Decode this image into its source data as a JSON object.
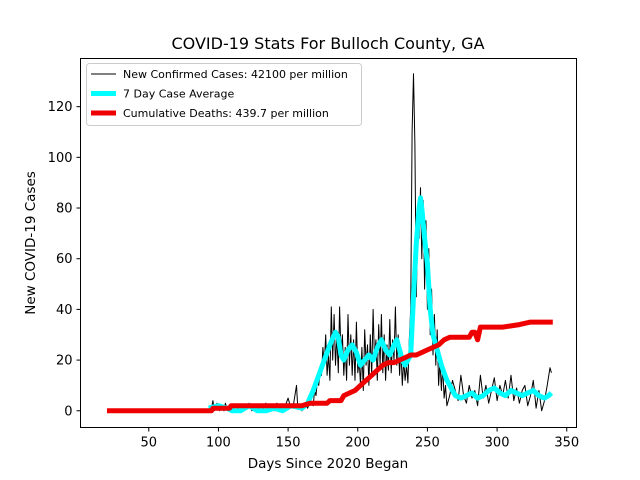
{
  "chart_data": {
    "type": "line",
    "title": "COVID-19 Stats For Bulloch County, GA",
    "xlabel": "Days Since 2020 Began",
    "ylabel": "New COVID-19 Cases",
    "xlim": [
      1,
      357
    ],
    "ylim": [
      -6.6,
      139
    ],
    "x_ticks": [
      50,
      100,
      150,
      200,
      250,
      300,
      350
    ],
    "y_ticks": [
      0,
      20,
      40,
      60,
      80,
      100,
      120
    ],
    "grid": false,
    "legend_position": "top-left",
    "series": [
      {
        "name": "New Confirmed Cases: 42100 per million",
        "color": "#000000",
        "line_width": 1,
        "points": [
          [
            93,
            0
          ],
          [
            94,
            2
          ],
          [
            95,
            1
          ],
          [
            96,
            4
          ],
          [
            97,
            0
          ],
          [
            98,
            2
          ],
          [
            99,
            3
          ],
          [
            100,
            1
          ],
          [
            101,
            0
          ],
          [
            102,
            2
          ],
          [
            103,
            1
          ],
          [
            104,
            0
          ],
          [
            105,
            3
          ],
          [
            106,
            1
          ],
          [
            107,
            0
          ],
          [
            108,
            2
          ],
          [
            109,
            1
          ],
          [
            110,
            0
          ],
          [
            112,
            2
          ],
          [
            114,
            1
          ],
          [
            116,
            0
          ],
          [
            118,
            2
          ],
          [
            120,
            1
          ],
          [
            122,
            3
          ],
          [
            124,
            0
          ],
          [
            126,
            1
          ],
          [
            128,
            2
          ],
          [
            130,
            0
          ],
          [
            132,
            1
          ],
          [
            134,
            3
          ],
          [
            136,
            0
          ],
          [
            138,
            1
          ],
          [
            140,
            0
          ],
          [
            142,
            3
          ],
          [
            144,
            1
          ],
          [
            146,
            0
          ],
          [
            148,
            2
          ],
          [
            150,
            5
          ],
          [
            152,
            1
          ],
          [
            154,
            3
          ],
          [
            156,
            10
          ],
          [
            157,
            1
          ],
          [
            158,
            2
          ],
          [
            160,
            0
          ],
          [
            162,
            3
          ],
          [
            164,
            1
          ],
          [
            166,
            4
          ],
          [
            168,
            2
          ],
          [
            169,
            8
          ],
          [
            170,
            6
          ],
          [
            171,
            12
          ],
          [
            172,
            10
          ],
          [
            173,
            15
          ],
          [
            174,
            14
          ],
          [
            175,
            25
          ],
          [
            176,
            18
          ],
          [
            177,
            30
          ],
          [
            178,
            14
          ],
          [
            179,
            22
          ],
          [
            180,
            12
          ],
          [
            181,
            41
          ],
          [
            182,
            20
          ],
          [
            183,
            38
          ],
          [
            184,
            18
          ],
          [
            185,
            30
          ],
          [
            186,
            15
          ],
          [
            187,
            41
          ],
          [
            188,
            22
          ],
          [
            189,
            30
          ],
          [
            190,
            14
          ],
          [
            191,
            25
          ],
          [
            192,
            12
          ],
          [
            193,
            38
          ],
          [
            194,
            18
          ],
          [
            195,
            30
          ],
          [
            196,
            14
          ],
          [
            197,
            28
          ],
          [
            198,
            12
          ],
          [
            199,
            35
          ],
          [
            200,
            15
          ],
          [
            201,
            20
          ],
          [
            202,
            10
          ],
          [
            203,
            25
          ],
          [
            204,
            8
          ],
          [
            205,
            32
          ],
          [
            206,
            18
          ],
          [
            207,
            26
          ],
          [
            208,
            10
          ],
          [
            209,
            30
          ],
          [
            210,
            14
          ],
          [
            211,
            40
          ],
          [
            212,
            20
          ],
          [
            213,
            28
          ],
          [
            214,
            12
          ],
          [
            215,
            34
          ],
          [
            216,
            18
          ],
          [
            217,
            38
          ],
          [
            218,
            15
          ],
          [
            219,
            30
          ],
          [
            220,
            12
          ],
          [
            221,
            26
          ],
          [
            222,
            16
          ],
          [
            223,
            36
          ],
          [
            224,
            15
          ],
          [
            225,
            28
          ],
          [
            226,
            20
          ],
          [
            227,
            41
          ],
          [
            228,
            18
          ],
          [
            229,
            30
          ],
          [
            230,
            14
          ],
          [
            231,
            25
          ],
          [
            232,
            10
          ],
          [
            233,
            20
          ],
          [
            234,
            12
          ],
          [
            235,
            18
          ],
          [
            236,
            11
          ],
          [
            237,
            28
          ],
          [
            238,
            40
          ],
          [
            239,
            110
          ],
          [
            240,
            133
          ],
          [
            241,
            105
          ],
          [
            242,
            45
          ],
          [
            243,
            72
          ],
          [
            244,
            68
          ],
          [
            245,
            88
          ],
          [
            246,
            60
          ],
          [
            247,
            83
          ],
          [
            248,
            48
          ],
          [
            249,
            75
          ],
          [
            250,
            40
          ],
          [
            251,
            64
          ],
          [
            252,
            30
          ],
          [
            253,
            48
          ],
          [
            254,
            22
          ],
          [
            255,
            38
          ],
          [
            256,
            18
          ],
          [
            257,
            32
          ],
          [
            258,
            10
          ],
          [
            259,
            20
          ],
          [
            260,
            8
          ],
          [
            261,
            18
          ],
          [
            262,
            5
          ],
          [
            263,
            10
          ],
          [
            264,
            2
          ],
          [
            266,
            6
          ],
          [
            268,
            12
          ],
          [
            270,
            8
          ],
          [
            272,
            4
          ],
          [
            274,
            14
          ],
          [
            276,
            6
          ],
          [
            278,
            3
          ],
          [
            280,
            10
          ],
          [
            282,
            5
          ],
          [
            284,
            8
          ],
          [
            286,
            2
          ],
          [
            288,
            14
          ],
          [
            290,
            5
          ],
          [
            292,
            10
          ],
          [
            294,
            3
          ],
          [
            296,
            8
          ],
          [
            298,
            13
          ],
          [
            300,
            4
          ],
          [
            302,
            10
          ],
          [
            304,
            6
          ],
          [
            306,
            12
          ],
          [
            308,
            5
          ],
          [
            310,
            14
          ],
          [
            312,
            4
          ],
          [
            314,
            9
          ],
          [
            316,
            3
          ],
          [
            318,
            8
          ],
          [
            320,
            10
          ],
          [
            322,
            2
          ],
          [
            324,
            6
          ],
          [
            326,
            12
          ],
          [
            328,
            1
          ],
          [
            330,
            8
          ],
          [
            332,
            0
          ],
          [
            334,
            4
          ],
          [
            336,
            10
          ],
          [
            338,
            17
          ],
          [
            339,
            15
          ]
        ]
      },
      {
        "name": "7 Day Case Average",
        "color": "#00ffff",
        "line_width": 5,
        "points": [
          [
            93,
            1
          ],
          [
            100,
            2
          ],
          [
            106,
            1
          ],
          [
            110,
            0
          ],
          [
            116,
            0
          ],
          [
            122,
            2
          ],
          [
            128,
            0
          ],
          [
            134,
            0
          ],
          [
            140,
            1
          ],
          [
            146,
            0
          ],
          [
            152,
            2
          ],
          [
            160,
            1
          ],
          [
            164,
            3
          ],
          [
            168,
            8
          ],
          [
            172,
            14
          ],
          [
            176,
            20
          ],
          [
            180,
            26
          ],
          [
            184,
            31
          ],
          [
            186,
            29
          ],
          [
            188,
            22
          ],
          [
            190,
            20
          ],
          [
            193,
            24
          ],
          [
            196,
            26
          ],
          [
            199,
            23
          ],
          [
            202,
            18
          ],
          [
            205,
            20
          ],
          [
            208,
            22
          ],
          [
            211,
            20
          ],
          [
            214,
            25
          ],
          [
            217,
            28
          ],
          [
            220,
            24
          ],
          [
            223,
            22
          ],
          [
            226,
            26
          ],
          [
            228,
            28
          ],
          [
            230,
            24
          ],
          [
            232,
            20
          ],
          [
            234,
            18
          ],
          [
            236,
            20
          ],
          [
            238,
            22
          ],
          [
            240,
            45
          ],
          [
            242,
            66
          ],
          [
            244,
            80
          ],
          [
            245,
            84
          ],
          [
            246,
            80
          ],
          [
            248,
            68
          ],
          [
            250,
            58
          ],
          [
            252,
            40
          ],
          [
            254,
            30
          ],
          [
            256,
            26
          ],
          [
            258,
            22
          ],
          [
            260,
            18
          ],
          [
            262,
            15
          ],
          [
            264,
            12
          ],
          [
            266,
            10
          ],
          [
            268,
            8
          ],
          [
            270,
            6
          ],
          [
            274,
            5
          ],
          [
            278,
            6
          ],
          [
            282,
            7
          ],
          [
            286,
            5
          ],
          [
            290,
            6
          ],
          [
            294,
            8
          ],
          [
            298,
            9
          ],
          [
            302,
            7
          ],
          [
            306,
            6
          ],
          [
            310,
            8
          ],
          [
            314,
            7
          ],
          [
            318,
            6
          ],
          [
            322,
            7
          ],
          [
            326,
            8
          ],
          [
            330,
            6
          ],
          [
            334,
            5
          ],
          [
            337,
            6
          ],
          [
            339,
            7
          ]
        ]
      },
      {
        "name": "Cumulative Deaths: 439.7 per million",
        "color": "#ee0000",
        "line_width": 5,
        "points": [
          [
            20,
            0
          ],
          [
            95,
            0
          ],
          [
            96,
            1
          ],
          [
            108,
            1
          ],
          [
            109,
            2
          ],
          [
            120,
            2
          ],
          [
            130,
            2
          ],
          [
            140,
            2
          ],
          [
            150,
            2
          ],
          [
            160,
            2
          ],
          [
            166,
            3
          ],
          [
            178,
            3
          ],
          [
            180,
            4
          ],
          [
            188,
            4
          ],
          [
            190,
            6
          ],
          [
            194,
            7
          ],
          [
            198,
            8
          ],
          [
            202,
            10
          ],
          [
            206,
            12
          ],
          [
            210,
            14
          ],
          [
            214,
            16
          ],
          [
            218,
            18
          ],
          [
            222,
            19
          ],
          [
            226,
            19
          ],
          [
            230,
            20
          ],
          [
            234,
            21
          ],
          [
            238,
            22
          ],
          [
            242,
            22
          ],
          [
            246,
            23
          ],
          [
            250,
            24
          ],
          [
            254,
            25
          ],
          [
            258,
            26
          ],
          [
            262,
            28
          ],
          [
            266,
            29
          ],
          [
            270,
            29
          ],
          [
            276,
            29
          ],
          [
            280,
            29
          ],
          [
            282,
            31
          ],
          [
            284,
            31
          ],
          [
            286,
            28
          ],
          [
            288,
            33
          ],
          [
            296,
            33
          ],
          [
            304,
            33
          ],
          [
            316,
            34
          ],
          [
            324,
            35
          ],
          [
            332,
            35
          ],
          [
            340,
            35
          ]
        ]
      }
    ]
  }
}
